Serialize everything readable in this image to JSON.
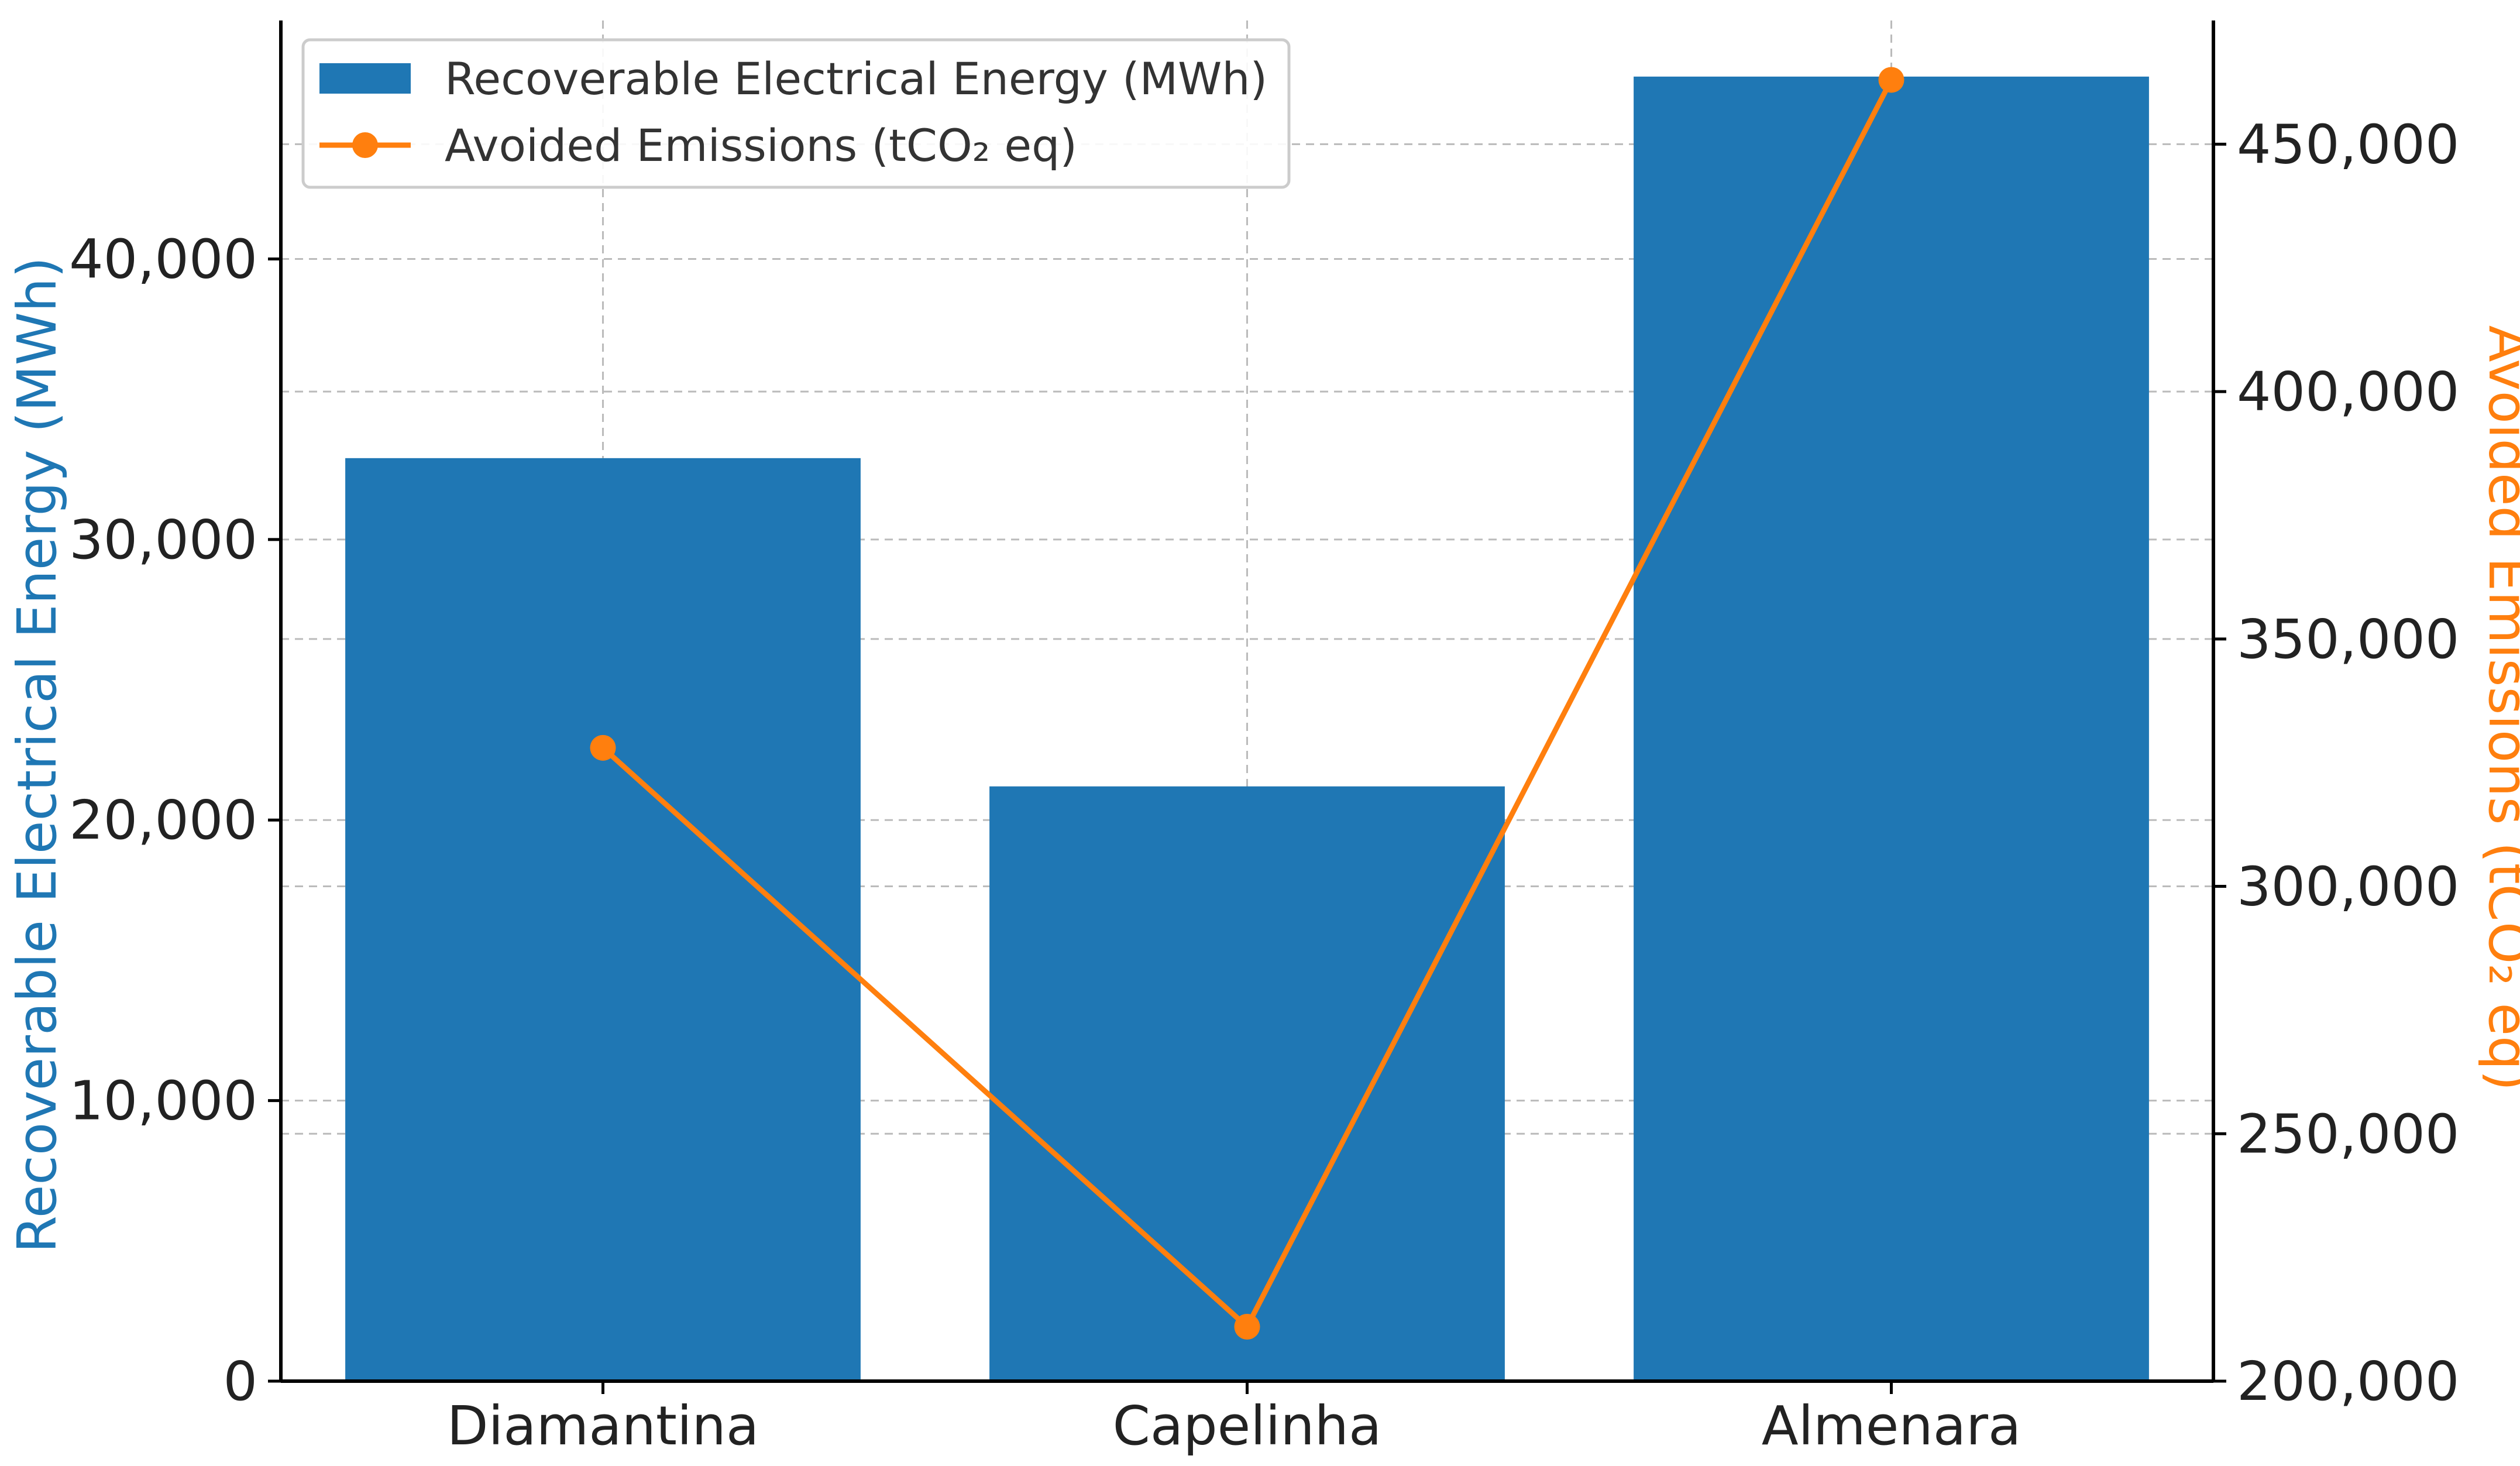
{
  "chart_data": {
    "type": "bar+line",
    "categories": [
      "Diamantina",
      "Capelinha",
      "Almenara"
    ],
    "series": [
      {
        "name": "Recoverable Electrical Energy (MWh)",
        "type": "bar",
        "axis": "left",
        "color": "#1f77b4",
        "values": [
          32900,
          21200,
          46500
        ]
      },
      {
        "name": "Avoided Emissions (tCO₂ eq)",
        "type": "line",
        "axis": "right",
        "color": "#ff7f0e",
        "values": [
          328000,
          211000,
          463000
        ]
      }
    ],
    "left_axis": {
      "label": "Recoverable Electrical Energy (MWh)",
      "color": "#1f77b4",
      "ylim": [
        0,
        48500
      ],
      "ticks": [
        0,
        10000,
        20000,
        30000,
        40000
      ],
      "tick_labels": [
        "0",
        "10,000",
        "20,000",
        "30,000",
        "40,000"
      ]
    },
    "right_axis": {
      "label": "Avoided Emissions (tCO₂ eq)",
      "color": "#ff7f0e",
      "ylim": [
        200000,
        475000
      ],
      "ticks": [
        200000,
        250000,
        300000,
        350000,
        400000,
        450000
      ],
      "tick_labels": [
        "200,000",
        "250,000",
        "300,000",
        "350,000",
        "400,000",
        "450,000"
      ]
    },
    "grid": true,
    "legend_position": "top-left"
  }
}
